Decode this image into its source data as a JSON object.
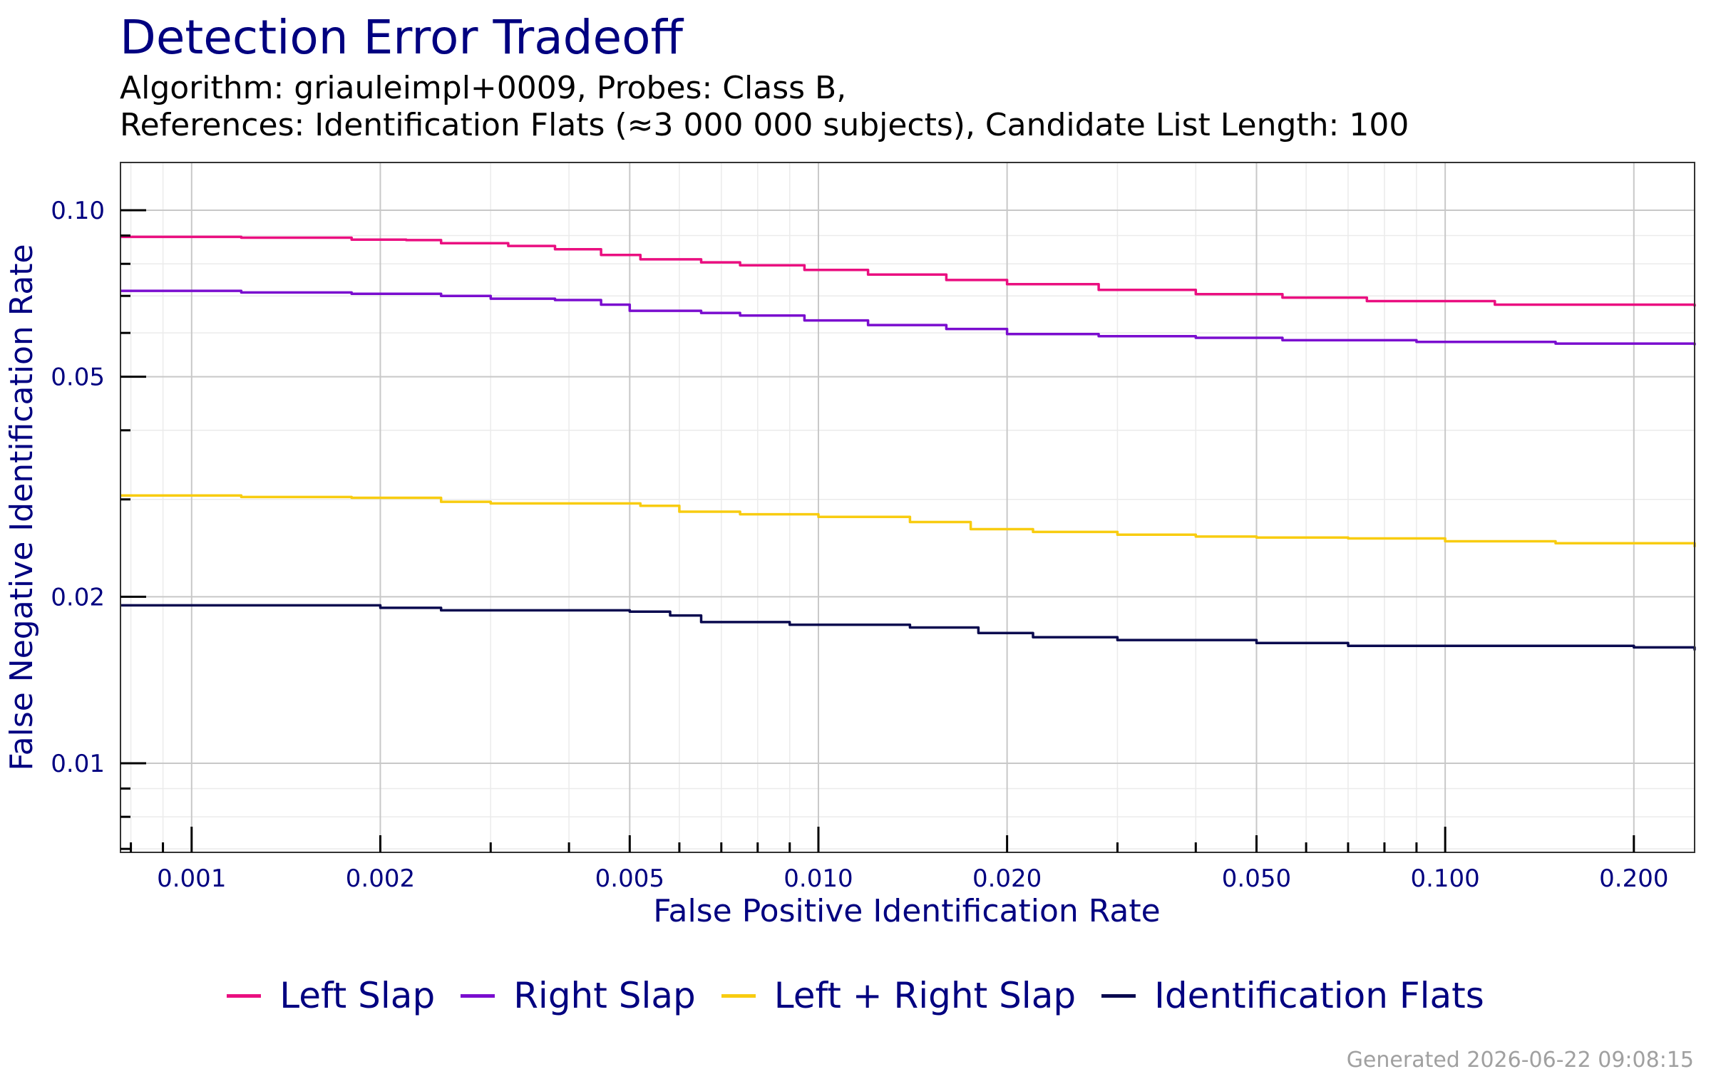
{
  "chart_data": {
    "type": "line",
    "title": "Detection Error Tradeoff",
    "subtitle_lines": [
      "Algorithm: griauleimpl+0009, Probes: Class B,",
      "References: Identification Flats (≈3 000 000 subjects), Candidate List Length: 100"
    ],
    "xlabel": "False Positive Identification Rate",
    "ylabel": "False Negative Identification Rate",
    "x_scale": "log",
    "y_scale": "log",
    "xlim": [
      0.00077,
      0.25
    ],
    "ylim": [
      0.0069,
      0.122
    ],
    "x_ticks": [
      {
        "value": 0.001,
        "label": "0.001"
      },
      {
        "value": 0.002,
        "label": "0.002"
      },
      {
        "value": 0.005,
        "label": "0.005"
      },
      {
        "value": 0.01,
        "label": "0.010"
      },
      {
        "value": 0.02,
        "label": "0.020"
      },
      {
        "value": 0.05,
        "label": "0.050"
      },
      {
        "value": 0.1,
        "label": "0.100"
      },
      {
        "value": 0.2,
        "label": "0.200"
      }
    ],
    "y_ticks": [
      {
        "value": 0.01,
        "label": "0.01"
      },
      {
        "value": 0.02,
        "label": "0.02"
      },
      {
        "value": 0.05,
        "label": "0.05"
      },
      {
        "value": 0.1,
        "label": "0.10"
      }
    ],
    "grid": true,
    "legend_position": "bottom",
    "series": [
      {
        "name": "Left Slap",
        "color": "#ea0f80",
        "points": [
          [
            0.00077,
            0.0895
          ],
          [
            0.0012,
            0.0892
          ],
          [
            0.0018,
            0.0885
          ],
          [
            0.0022,
            0.0883
          ],
          [
            0.0025,
            0.0872
          ],
          [
            0.0032,
            0.0862
          ],
          [
            0.0038,
            0.085
          ],
          [
            0.0045,
            0.083
          ],
          [
            0.0052,
            0.0815
          ],
          [
            0.0065,
            0.0805
          ],
          [
            0.0075,
            0.0795
          ],
          [
            0.0095,
            0.078
          ],
          [
            0.012,
            0.0765
          ],
          [
            0.016,
            0.0748
          ],
          [
            0.02,
            0.0735
          ],
          [
            0.028,
            0.0718
          ],
          [
            0.04,
            0.0705
          ],
          [
            0.055,
            0.0695
          ],
          [
            0.075,
            0.0685
          ],
          [
            0.12,
            0.0675
          ],
          [
            0.25,
            0.067
          ]
        ]
      },
      {
        "name": "Right Slap",
        "color": "#7a0dcf",
        "points": [
          [
            0.00077,
            0.0715
          ],
          [
            0.0012,
            0.071
          ],
          [
            0.0018,
            0.0706
          ],
          [
            0.0025,
            0.07
          ],
          [
            0.003,
            0.0692
          ],
          [
            0.0038,
            0.0688
          ],
          [
            0.0045,
            0.0675
          ],
          [
            0.005,
            0.0658
          ],
          [
            0.0065,
            0.0652
          ],
          [
            0.0075,
            0.0645
          ],
          [
            0.0095,
            0.0632
          ],
          [
            0.012,
            0.062
          ],
          [
            0.016,
            0.061
          ],
          [
            0.02,
            0.0597
          ],
          [
            0.028,
            0.0592
          ],
          [
            0.04,
            0.0588
          ],
          [
            0.055,
            0.0582
          ],
          [
            0.09,
            0.0578
          ],
          [
            0.15,
            0.0574
          ],
          [
            0.25,
            0.057
          ]
        ]
      },
      {
        "name": "Left + Right Slap",
        "color": "#f8cc10",
        "points": [
          [
            0.00077,
            0.0305
          ],
          [
            0.0012,
            0.0303
          ],
          [
            0.0018,
            0.0302
          ],
          [
            0.0025,
            0.0297
          ],
          [
            0.003,
            0.0295
          ],
          [
            0.0045,
            0.0295
          ],
          [
            0.0052,
            0.0292
          ],
          [
            0.006,
            0.0285
          ],
          [
            0.0075,
            0.0282
          ],
          [
            0.01,
            0.0279
          ],
          [
            0.014,
            0.0273
          ],
          [
            0.0175,
            0.0265
          ],
          [
            0.022,
            0.0262
          ],
          [
            0.03,
            0.0259
          ],
          [
            0.04,
            0.0257
          ],
          [
            0.05,
            0.0256
          ],
          [
            0.07,
            0.0255
          ],
          [
            0.1,
            0.0252
          ],
          [
            0.15,
            0.025
          ],
          [
            0.25,
            0.0246
          ]
        ]
      },
      {
        "name": "Identification Flats",
        "color": "#0a0a4f",
        "points": [
          [
            0.00077,
            0.0193
          ],
          [
            0.0014,
            0.0193
          ],
          [
            0.002,
            0.0191
          ],
          [
            0.0025,
            0.0189
          ],
          [
            0.005,
            0.0188
          ],
          [
            0.0058,
            0.0185
          ],
          [
            0.0065,
            0.018
          ],
          [
            0.009,
            0.0178
          ],
          [
            0.014,
            0.0176
          ],
          [
            0.018,
            0.0172
          ],
          [
            0.022,
            0.0169
          ],
          [
            0.03,
            0.0167
          ],
          [
            0.05,
            0.0165
          ],
          [
            0.07,
            0.0163
          ],
          [
            0.2,
            0.0162
          ],
          [
            0.25,
            0.016
          ]
        ]
      }
    ]
  },
  "footer": "Generated 2026-06-22 09:08:15"
}
